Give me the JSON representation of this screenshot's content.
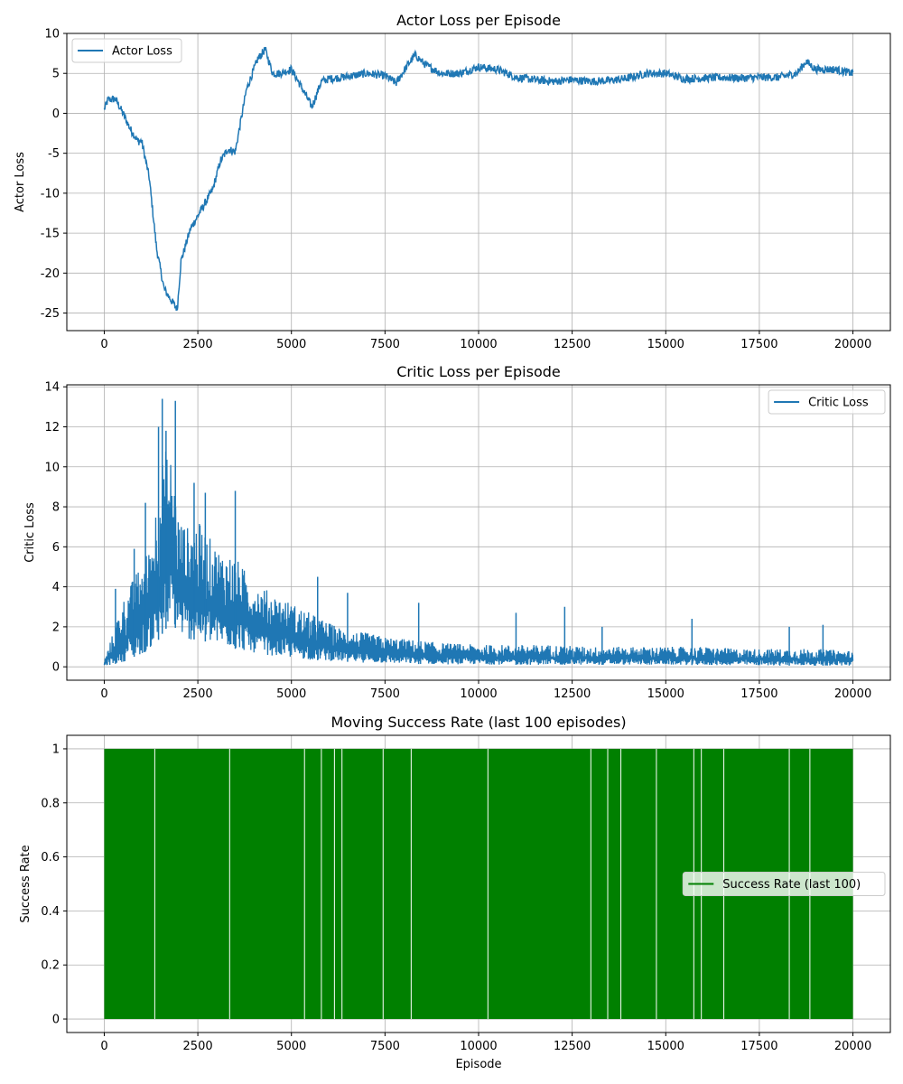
{
  "chart_data": [
    {
      "type": "line",
      "title": "Actor Loss per Episode",
      "xlabel": "",
      "ylabel": "Actor Loss",
      "xlim": [
        -1000,
        21000
      ],
      "ylim": [
        -27.2,
        10
      ],
      "xticks": [
        0,
        2500,
        5000,
        7500,
        10000,
        12500,
        15000,
        17500,
        20000
      ],
      "yticks": [
        -25,
        -20,
        -15,
        -10,
        -5,
        0,
        5,
        10
      ],
      "grid": true,
      "legend": {
        "position": "top-left"
      },
      "series": [
        {
          "name": "Actor Loss",
          "color": "#1f77b4",
          "noise": 0.5,
          "x": [
            0,
            100,
            300,
            500,
            700,
            900,
            1000,
            1200,
            1400,
            1600,
            1800,
            1950,
            2050,
            2300,
            2600,
            2900,
            3100,
            3300,
            3500,
            3800,
            4100,
            4300,
            4500,
            4700,
            5000,
            5300,
            5550,
            5800,
            6000,
            6500,
            7000,
            7500,
            7800,
            8100,
            8300,
            8600,
            9000,
            9500,
            10000,
            10500,
            11000,
            11500,
            12000,
            12500,
            13000,
            13500,
            14000,
            14500,
            15000,
            15500,
            16000,
            16500,
            17000,
            17500,
            18000,
            18500,
            18750,
            19000,
            19500,
            20000
          ],
          "y": [
            0.5,
            1.7,
            1.8,
            0.0,
            -2.0,
            -3.5,
            -3.5,
            -8.0,
            -17.0,
            -22.0,
            -23.5,
            -24.5,
            -18.5,
            -14.5,
            -12.0,
            -9.5,
            -6.0,
            -4.5,
            -4.8,
            3.0,
            6.8,
            8.0,
            5.0,
            5.0,
            5.5,
            3.0,
            0.8,
            4.0,
            4.3,
            4.6,
            5.0,
            4.7,
            3.8,
            6.0,
            7.3,
            6.0,
            5.0,
            5.0,
            5.8,
            5.5,
            4.5,
            4.2,
            4.0,
            4.2,
            4.0,
            4.1,
            4.4,
            5.0,
            5.0,
            4.3,
            4.4,
            4.5,
            4.4,
            4.5,
            4.5,
            5.0,
            6.5,
            5.5,
            5.5,
            5.0
          ]
        }
      ]
    },
    {
      "type": "line",
      "title": "Critic Loss per Episode",
      "xlabel": "",
      "ylabel": "Critic Loss",
      "xlim": [
        -1000,
        21000
      ],
      "ylim": [
        -0.67,
        14.1
      ],
      "xticks": [
        0,
        2500,
        5000,
        7500,
        10000,
        12500,
        15000,
        17500,
        20000
      ],
      "yticks": [
        0,
        2,
        4,
        6,
        8,
        10,
        12,
        14
      ],
      "grid": true,
      "legend": {
        "position": "top-right"
      },
      "series": [
        {
          "name": "Critic Loss",
          "color": "#1f77b4",
          "x": [
            0,
            200,
            400,
            600,
            800,
            1000,
            1200,
            1400,
            1600,
            1800,
            2000,
            2200,
            2500,
            2800,
            3000,
            3500,
            4000,
            4500,
            5000,
            5500,
            6000,
            6500,
            7000,
            7500,
            8000,
            9000,
            10000,
            11000,
            12000,
            13000,
            14000,
            15000,
            16000,
            17000,
            18000,
            19000,
            20000
          ],
          "low": [
            0.05,
            0.1,
            0.2,
            0.3,
            0.5,
            0.6,
            0.9,
            1.2,
            1.8,
            2.2,
            1.7,
            1.3,
            1.4,
            1.2,
            1.1,
            0.9,
            0.7,
            0.55,
            0.45,
            0.35,
            0.3,
            0.25,
            0.2,
            0.18,
            0.15,
            0.12,
            0.12,
            0.1,
            0.1,
            0.1,
            0.1,
            0.1,
            0.08,
            0.08,
            0.06,
            0.06,
            0.05
          ],
          "high": [
            0.3,
            1.5,
            2.8,
            3.8,
            4.5,
            5.2,
            6.0,
            8.5,
            11.0,
            10.5,
            7.5,
            7.0,
            7.3,
            6.5,
            6.0,
            5.5,
            4.2,
            3.7,
            3.2,
            2.7,
            2.2,
            1.8,
            1.7,
            1.5,
            1.4,
            1.2,
            1.1,
            1.1,
            1.1,
            1.0,
            1.0,
            1.0,
            1.0,
            0.9,
            0.9,
            0.9,
            0.8
          ],
          "spikes_x": [
            300,
            800,
            1100,
            1450,
            1550,
            1650,
            1900,
            2400,
            2700,
            3500,
            5700,
            6500,
            8400,
            11000,
            12300,
            13300,
            15700,
            18300,
            19200
          ],
          "spikes_y": [
            3.9,
            5.9,
            8.2,
            12.0,
            13.4,
            11.8,
            13.3,
            9.2,
            8.7,
            8.8,
            4.5,
            3.7,
            3.2,
            2.7,
            3.0,
            2.0,
            2.4,
            2.0,
            2.1
          ]
        }
      ]
    },
    {
      "type": "line",
      "title": "Moving Success Rate (last 100 episodes)",
      "xlabel": "Episode",
      "ylabel": "Success Rate",
      "xlim": [
        -1000,
        21000
      ],
      "ylim": [
        -0.05,
        1.05
      ],
      "xticks": [
        0,
        2500,
        5000,
        7500,
        10000,
        12500,
        15000,
        17500,
        20000
      ],
      "yticks": [
        0.0,
        0.2,
        0.4,
        0.6,
        0.8,
        1.0
      ],
      "grid": true,
      "legend": {
        "position": "center-right"
      },
      "series": [
        {
          "name": "Success Rate (last 100)",
          "color": "#008000",
          "x": [
            0,
            20000
          ],
          "y": [
            0,
            1
          ],
          "gaps_x": [
            1350,
            3350,
            5350,
            5800,
            6150,
            6350,
            7450,
            8200,
            10250,
            13000,
            13450,
            13800,
            14750,
            15750,
            15950,
            16550,
            18300,
            18850
          ]
        }
      ]
    }
  ]
}
